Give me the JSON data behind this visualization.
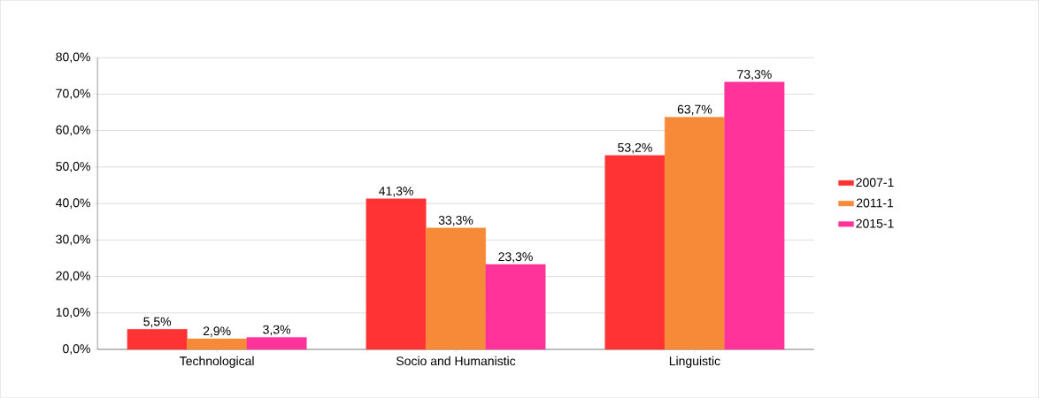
{
  "chart_data": {
    "type": "bar",
    "categories": [
      "Technological",
      "Socio and Humanistic",
      "Linguistic"
    ],
    "series": [
      {
        "name": "2007-1",
        "color": "#ff3333",
        "values": [
          5.5,
          41.3,
          53.2
        ],
        "value_labels": [
          "5,5%",
          "41,3%",
          "53,2%"
        ]
      },
      {
        "name": "2011-1",
        "color": "#f78a38",
        "values": [
          2.9,
          33.3,
          63.7
        ],
        "value_labels": [
          "2,9%",
          "33,3%",
          "63,7%"
        ]
      },
      {
        "name": "2015-1",
        "color": "#ff3399",
        "values": [
          3.3,
          23.3,
          73.3
        ],
        "value_labels": [
          "3,3%",
          "23,3%",
          "73,3%"
        ]
      }
    ],
    "ylim": [
      0,
      80
    ],
    "yticks": [
      {
        "value": 0,
        "label": "0,0%"
      },
      {
        "value": 10,
        "label": "10,0%"
      },
      {
        "value": 20,
        "label": "20,0%"
      },
      {
        "value": 30,
        "label": "30,0%"
      },
      {
        "value": 40,
        "label": "40,0%"
      },
      {
        "value": 50,
        "label": "50,0%"
      },
      {
        "value": 60,
        "label": "60,0%"
      },
      {
        "value": 70,
        "label": "70,0%"
      },
      {
        "value": 80,
        "label": "80,0%"
      }
    ],
    "grid": "y",
    "legend": "right"
  }
}
